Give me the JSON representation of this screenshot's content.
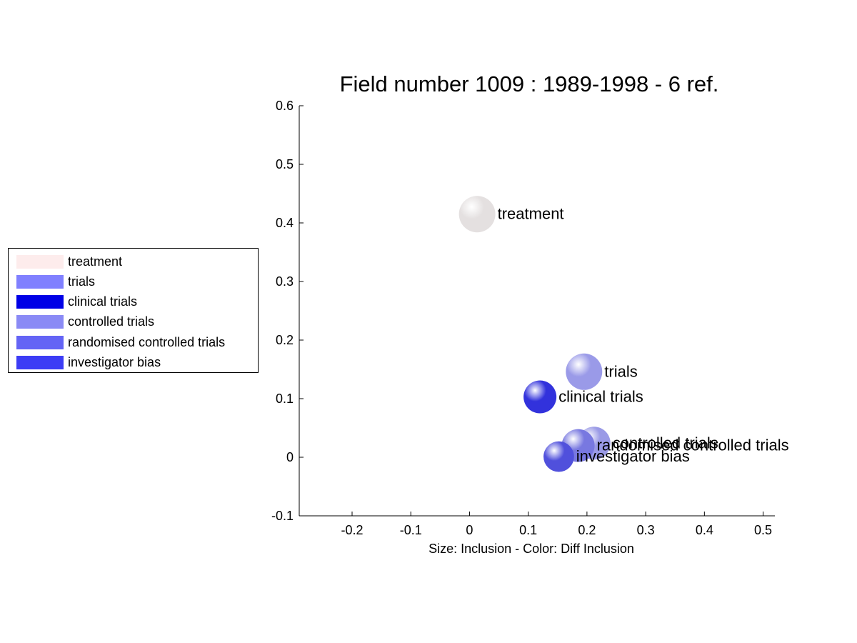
{
  "chart_data": {
    "type": "scatter",
    "title": "Field number 1009 : 1989-1998  - 6 ref.",
    "xlabel": "Size: Inclusion - Color: Diff Inclusion",
    "ylabel": "",
    "xlim": [
      -0.29,
      0.52
    ],
    "ylim": [
      -0.1,
      0.6
    ],
    "xticks": [
      -0.2,
      -0.1,
      0,
      0.1,
      0.2,
      0.3,
      0.4,
      0.5
    ],
    "xtick_labels": [
      "-0.2",
      "-0.1",
      "0",
      "0.1",
      "0.2",
      "0.3",
      "0.4",
      "0.5"
    ],
    "yticks": [
      -0.1,
      0,
      0.1,
      0.2,
      0.3,
      0.4,
      0.5,
      0.6
    ],
    "ytick_labels": [
      "-0.1",
      "0",
      "0.1",
      "0.2",
      "0.3",
      "0.4",
      "0.5",
      "0.6"
    ],
    "grid": false,
    "legend_position": "left",
    "points": [
      {
        "label": "treatment",
        "x": 0.013,
        "y": 0.415,
        "size": 0.031,
        "color": "#fdecec",
        "sphere": "#e4e0e0"
      },
      {
        "label": "trials",
        "x": 0.195,
        "y": 0.146,
        "size": 0.031,
        "color": "#8080ff",
        "sphere": "#9a9ae8"
      },
      {
        "label": "clinical trials",
        "x": 0.12,
        "y": 0.103,
        "size": 0.028,
        "color": "#0000e6",
        "sphere": "#3232dc"
      },
      {
        "label": "controlled trials",
        "x": 0.212,
        "y": 0.024,
        "size": 0.028,
        "color": "#8a8af5",
        "sphere": "#9a9ae6"
      },
      {
        "label": "randomised controlled trials",
        "x": 0.185,
        "y": 0.02,
        "size": 0.028,
        "color": "#6464f5",
        "sphere": "#7878e0"
      },
      {
        "label": "investigator bias",
        "x": 0.152,
        "y": 0.001,
        "size": 0.026,
        "color": "#3c3cf5",
        "sphere": "#5050dc"
      }
    ]
  }
}
